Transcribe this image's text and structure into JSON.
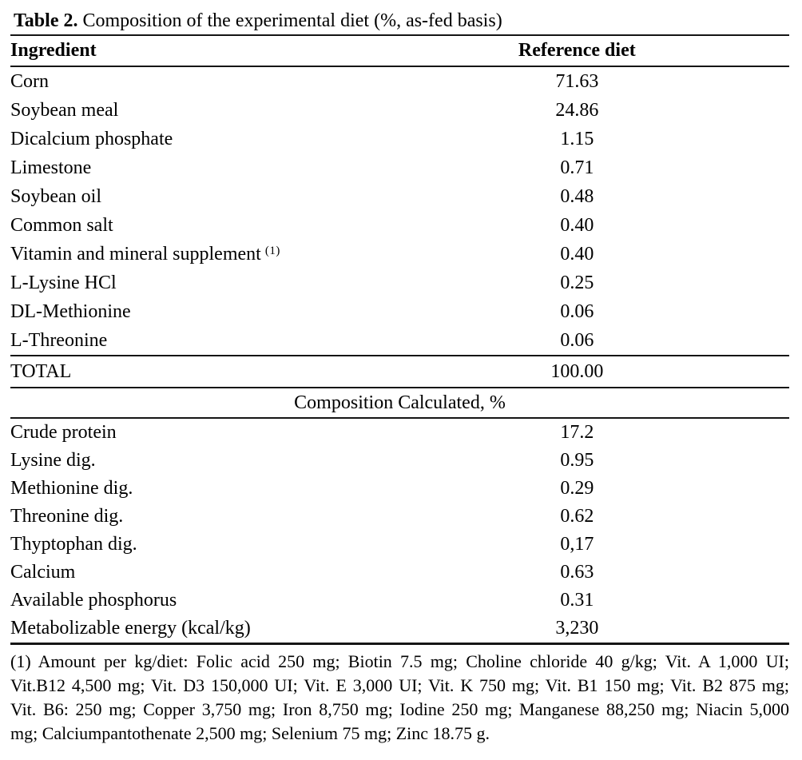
{
  "caption": {
    "label": "Table 2.",
    "text": " Composition of the experimental diet (%, as-fed basis)"
  },
  "table": {
    "columns": {
      "ingredient": "Ingredient",
      "value": "Reference diet"
    },
    "ingredients": [
      {
        "name": "Corn",
        "value": "71.63"
      },
      {
        "name": "Soybean meal",
        "value": "24.86"
      },
      {
        "name": "Dicalcium phosphate",
        "value": "1.15"
      },
      {
        "name": "Limestone",
        "value": "0.71"
      },
      {
        "name": "Soybean oil",
        "value": "0.48"
      },
      {
        "name": "Common salt",
        "value": "0.40"
      },
      {
        "name": "Vitamin and mineral supplement",
        "sup": "(1)",
        "value": "0.40"
      },
      {
        "name": "L-Lysine HCl",
        "value": "0.25"
      },
      {
        "name": "DL-Methionine",
        "value": "0.06"
      },
      {
        "name": "L-Threonine",
        "value": "0.06"
      }
    ],
    "total": {
      "name": "TOTAL",
      "value": "100.00"
    },
    "section_header": "Composition Calculated, %",
    "calculated": [
      {
        "name": "Crude protein",
        "value": "17.2"
      },
      {
        "name": "Lysine dig.",
        "value": "0.95"
      },
      {
        "name": "Methionine dig.",
        "value": "0.29"
      },
      {
        "name": "Threonine dig.",
        "value": "0.62"
      },
      {
        "name": "Thyptophan dig.",
        "value": "0,17"
      },
      {
        "name": "Calcium",
        "value": "0.63"
      },
      {
        "name": "Available phosphorus",
        "value": "0.31"
      },
      {
        "name": "Metabolizable energy (kcal/kg)",
        "value": "3,230"
      }
    ],
    "footnote_lines": [
      "(1) Amount per kg/diet: Folic acid 250 mg; Biotin 7.5 mg; Choline chloride 40 g/kg; Vit. A 1,000 UI;",
      "Vit.B12 4,500 mg; Vit. D3 150,000 UI; Vit. E 3,000 UI; Vit. K 750 mg; Vit. B1 150 mg; Vit. B2 875 mg;",
      "Vit. B6: 250 mg; Copper 3,750 mg; Iron 8,750 mg; Iodine 250 mg; Manganese 88,250 mg; Niacin 5,000",
      "mg; Calciumpantothenate 2,500 mg; Selenium 75 mg; Zinc 18.75 g."
    ]
  }
}
